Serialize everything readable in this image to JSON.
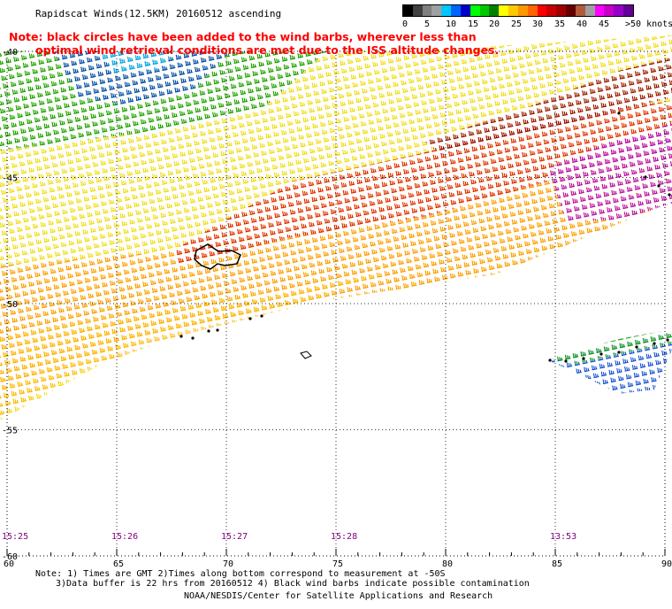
{
  "header": {
    "title": "Rapidscat Winds(12.5KM) 20160512 ascending"
  },
  "note": {
    "line1": "Note: black circles have been added to the wind barbs, wherever less than",
    "line2": "optimal wind retrieval conditions are met due to the ISS altitude changes."
  },
  "legend": {
    "colors": [
      "#000000",
      "#404040",
      "#808080",
      "#a0a0a0",
      "#00c8ff",
      "#0064ff",
      "#0000c8",
      "#00ff00",
      "#00c800",
      "#008000",
      "#ffff00",
      "#ffc800",
      "#ff9600",
      "#ff6400",
      "#ff0000",
      "#c80000",
      "#a00000",
      "#640000",
      "#b45a3c",
      "#a0a0a0",
      "#ff00ff",
      "#c800c8",
      "#9600c8",
      "#640096"
    ],
    "labels": [
      "0",
      "5",
      "10",
      "15",
      "20",
      "25",
      "30",
      "35",
      "40",
      "45",
      ">50 knots"
    ]
  },
  "axes": {
    "lon_labels": [
      "60",
      "65",
      "70",
      "75",
      "80",
      "85",
      "90"
    ],
    "lat_labels": [
      "-40",
      "-45",
      "-50",
      "-55",
      "-60"
    ]
  },
  "times": [
    "15:25",
    "15:26",
    "15:27",
    "15:28",
    "13:53"
  ],
  "footer": {
    "line1": "Note: 1) Times are GMT 2)Times along bottom correspond to measurement at -50S",
    "line2": "3)Data buffer is 22 hrs from 20160512 4) Black wind barbs indicate possible contamination",
    "line3": "NOAA/NESDIS/Center for Satellite Applications and Research"
  }
}
